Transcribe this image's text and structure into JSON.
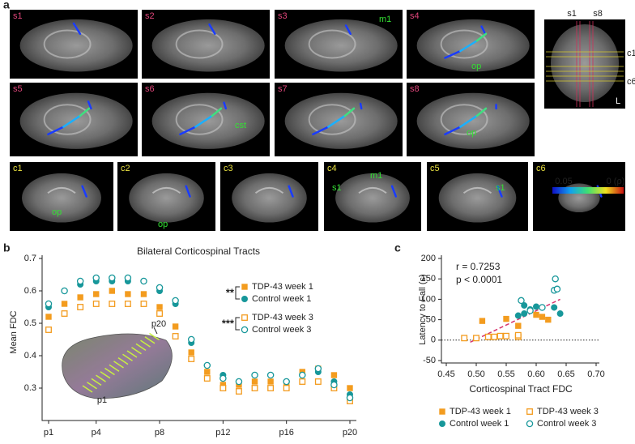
{
  "panel_labels": [
    "a",
    "b",
    "c"
  ],
  "panel_a": {
    "sagittal": [
      {
        "label": "s1",
        "notes": []
      },
      {
        "label": "s2",
        "notes": []
      },
      {
        "label": "s3",
        "notes": [
          "m1"
        ]
      },
      {
        "label": "s4",
        "notes": [
          "op"
        ]
      },
      {
        "label": "s5",
        "notes": []
      },
      {
        "label": "s6",
        "notes": [
          "cst"
        ]
      },
      {
        "label": "s7",
        "notes": []
      },
      {
        "label": "s8",
        "notes": [
          "op"
        ]
      }
    ],
    "coronal": [
      {
        "label": "c1",
        "notes": [
          "op"
        ]
      },
      {
        "label": "c2",
        "notes": [
          "op"
        ]
      },
      {
        "label": "c3",
        "notes": []
      },
      {
        "label": "c4",
        "notes": [
          "s1",
          "m1"
        ]
      },
      {
        "label": "c5",
        "notes": [
          "s1"
        ]
      },
      {
        "label": "c6",
        "notes": []
      }
    ],
    "reference": {
      "top": [
        "s1",
        "s8"
      ],
      "right": [
        "c1",
        "c6"
      ],
      "corner": "L"
    },
    "colorbar": {
      "min_label": "0.05",
      "max_label": "0 (ρ)"
    }
  },
  "chart_data": [
    {
      "type": "scatter",
      "title": "Bilateral Corticospinal Tracts",
      "y_label": "Mean FDC",
      "categories": [
        "p1",
        null,
        null,
        "p4",
        null,
        null,
        null,
        "p8",
        null,
        null,
        null,
        "p12",
        null,
        null,
        null,
        "p16",
        null,
        null,
        null,
        "p20"
      ],
      "ylim": [
        0.2,
        0.7
      ],
      "yticks": [
        0.3,
        0.4,
        0.5,
        0.6,
        0.7
      ],
      "series": [
        {
          "name": "TDP-43 week 1",
          "color": "#f39c1f",
          "marker": "square-filled",
          "values": [
            0.52,
            0.56,
            0.58,
            0.59,
            0.6,
            0.59,
            0.59,
            0.55,
            0.49,
            0.41,
            0.35,
            0.31,
            0.31,
            0.32,
            0.32,
            0.31,
            0.35,
            0.36,
            0.34,
            0.3
          ]
        },
        {
          "name": "Control week 1",
          "color": "#17979a",
          "marker": "circle-filled",
          "values": [
            0.55,
            0.6,
            0.62,
            0.63,
            0.63,
            0.63,
            0.63,
            0.6,
            0.56,
            0.44,
            0.37,
            0.34,
            0.32,
            0.34,
            0.34,
            0.32,
            0.34,
            0.35,
            0.32,
            0.28
          ]
        },
        {
          "name": "TDP-43 week 3",
          "color": "#f39c1f",
          "marker": "square-open",
          "values": [
            0.48,
            0.53,
            0.55,
            0.56,
            0.56,
            0.56,
            0.56,
            0.53,
            0.46,
            0.39,
            0.33,
            0.3,
            0.29,
            0.3,
            0.3,
            0.3,
            0.32,
            0.32,
            0.3,
            0.26
          ]
        },
        {
          "name": "Control week 3",
          "color": "#17979a",
          "marker": "circle-open",
          "values": [
            0.56,
            0.6,
            0.63,
            0.64,
            0.64,
            0.64,
            0.63,
            0.61,
            0.57,
            0.45,
            0.37,
            0.33,
            0.32,
            0.34,
            0.34,
            0.32,
            0.34,
            0.36,
            0.31,
            0.27
          ]
        }
      ],
      "significance": [
        "**",
        "***"
      ],
      "inset_labels": [
        "p20",
        "p1"
      ]
    },
    {
      "type": "scatter",
      "x_label": "Corticospinal Tract FDC",
      "y_label": "Latency to Fall (s)",
      "xlim": [
        0.45,
        0.7
      ],
      "xticks": [
        0.45,
        {
          "value": 0.5,
          "label": "0.50"
        },
        0.55,
        {
          "value": 0.6,
          "label": "0.60"
        },
        0.65,
        {
          "value": 0.7,
          "label": "0.70"
        }
      ],
      "ylim": [
        -50,
        200
      ],
      "yticks": [
        -50,
        0,
        50,
        100,
        150,
        200
      ],
      "annotations": [
        "r = 0.7253",
        "p < 0.0001"
      ],
      "fit_line": {
        "color": "#d6336c",
        "x": [
          0.49,
          0.64
        ],
        "y": [
          -5,
          100
        ]
      },
      "series": [
        {
          "name": "TDP-43 week 1",
          "color": "#f39c1f",
          "marker": "square-filled",
          "x": [
            0.51,
            0.55,
            0.57,
            0.6,
            0.61,
            0.62
          ],
          "y": [
            47,
            52,
            35,
            62,
            57,
            50
          ]
        },
        {
          "name": "TDP-43 week 3",
          "color": "#f39c1f",
          "marker": "square-open",
          "x": [
            0.48,
            0.5,
            0.52,
            0.53,
            0.54,
            0.55,
            0.57,
            0.57
          ],
          "y": [
            5,
            5,
            8,
            8,
            10,
            10,
            8,
            12
          ]
        },
        {
          "name": "Control week 1",
          "color": "#17979a",
          "marker": "circle-filled",
          "x": [
            0.57,
            0.58,
            0.58,
            0.59,
            0.6,
            0.63,
            0.64
          ],
          "y": [
            60,
            65,
            85,
            75,
            82,
            80,
            65
          ]
        },
        {
          "name": "Control week 3",
          "color": "#17979a",
          "marker": "circle-open",
          "x": [
            0.575,
            0.59,
            0.61,
            0.63,
            0.632,
            0.635
          ],
          "y": [
            97,
            72,
            80,
            122,
            150,
            125
          ]
        }
      ]
    }
  ]
}
